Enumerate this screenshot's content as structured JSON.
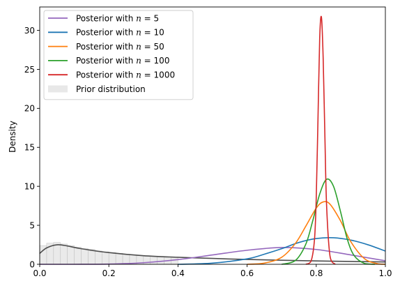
{
  "chart_data": {
    "type": "line",
    "title": "",
    "xlabel": "",
    "ylabel": "Density",
    "xlim": [
      0.0,
      1.0
    ],
    "ylim": [
      0,
      33
    ],
    "x_ticks": [
      0.0,
      0.2,
      0.4,
      0.6,
      0.8,
      1.0
    ],
    "x_tick_labels": [
      "0.0",
      "0.2",
      "0.4",
      "0.6",
      "0.8",
      "1.0"
    ],
    "y_ticks": [
      0,
      5,
      10,
      15,
      20,
      25,
      30
    ],
    "y_tick_labels": [
      "0",
      "5",
      "10",
      "15",
      "20",
      "25",
      "30"
    ],
    "grid": false,
    "legend_position": "upper-left",
    "legend": [
      {
        "label": "Posterior with n = 5",
        "text": "Posterior with ",
        "math": "n",
        "suffix": " = 5",
        "color": "#9467bd",
        "kind": "line"
      },
      {
        "label": "Posterior with n = 10",
        "text": "Posterior with ",
        "math": "n",
        "suffix": " = 10",
        "color": "#1f77b4",
        "kind": "line"
      },
      {
        "label": "Posterior with n = 50",
        "text": "Posterior with ",
        "math": "n",
        "suffix": " = 50",
        "color": "#ff7f0e",
        "kind": "line"
      },
      {
        "label": "Posterior with n = 100",
        "text": "Posterior with ",
        "math": "n",
        "suffix": " = 100",
        "color": "#2ca02c",
        "kind": "line"
      },
      {
        "label": "Posterior with n = 1000",
        "text": "Posterior with ",
        "math": "n",
        "suffix": " = 1000",
        "color": "#d62728",
        "kind": "line"
      },
      {
        "label": "Prior distribution",
        "text": "Prior distribution",
        "math": "",
        "suffix": "",
        "color": "#d9d9d9",
        "kind": "patch"
      }
    ],
    "series": [
      {
        "name": "Posterior with n = 5",
        "color": "#9467bd",
        "x": [
          0.0,
          0.1,
          0.2,
          0.3,
          0.4,
          0.5,
          0.6,
          0.7,
          0.8,
          0.9,
          1.0
        ],
        "y": [
          0.0,
          0.0,
          0.03,
          0.2,
          0.6,
          1.2,
          1.8,
          2.15,
          1.9,
          1.2,
          0.45
        ]
      },
      {
        "name": "Posterior with n = 10",
        "color": "#1f77b4",
        "x": [
          0.4,
          0.5,
          0.6,
          0.65,
          0.7,
          0.75,
          0.8,
          0.85,
          0.9,
          0.95,
          1.0
        ],
        "y": [
          0.0,
          0.15,
          0.7,
          1.3,
          2.0,
          2.8,
          3.3,
          3.4,
          3.1,
          2.5,
          1.7
        ]
      },
      {
        "name": "Posterior with n = 50",
        "color": "#ff7f0e",
        "x": [
          0.6,
          0.65,
          0.7,
          0.74,
          0.77,
          0.8,
          0.82,
          0.84,
          0.87,
          0.9,
          0.94,
          0.98,
          1.0
        ],
        "y": [
          0.0,
          0.15,
          0.9,
          2.7,
          4.9,
          7.2,
          8.0,
          7.7,
          5.6,
          2.9,
          0.7,
          0.05,
          0.0
        ]
      },
      {
        "name": "Posterior with n = 100",
        "color": "#2ca02c",
        "x": [
          0.7,
          0.74,
          0.77,
          0.79,
          0.81,
          0.83,
          0.85,
          0.87,
          0.89,
          0.91,
          0.94,
          0.97
        ],
        "y": [
          0.0,
          0.5,
          2.6,
          5.6,
          9.0,
          10.9,
          10.0,
          6.8,
          3.2,
          1.1,
          0.1,
          0.0
        ]
      },
      {
        "name": "Posterior with n = 1000",
        "color": "#d62728",
        "x": [
          0.77,
          0.785,
          0.795,
          0.8,
          0.805,
          0.81,
          0.815,
          0.82,
          0.825,
          0.83,
          0.84,
          0.855
        ],
        "y": [
          0.0,
          0.4,
          3.2,
          8.5,
          18.5,
          29.0,
          31.7,
          26.5,
          16.5,
          7.5,
          1.0,
          0.0
        ]
      },
      {
        "name": "Prior distribution",
        "color": "#4d4d4d",
        "x": [
          0.0,
          0.02,
          0.05,
          0.08,
          0.12,
          0.2,
          0.3,
          0.4,
          0.5,
          0.6,
          0.7,
          0.8,
          0.9,
          1.0
        ],
        "y": [
          1.4,
          2.1,
          2.5,
          2.35,
          2.0,
          1.5,
          1.1,
          0.9,
          0.75,
          0.62,
          0.52,
          0.43,
          0.36,
          0.3
        ]
      }
    ],
    "prior_histogram": {
      "color": "#e6e6e6",
      "edge_color": "#bdbdbd",
      "bin_width": 0.02,
      "x": [
        0.0,
        0.02,
        0.04,
        0.06,
        0.08,
        0.1,
        0.12,
        0.14,
        0.16,
        0.18,
        0.2,
        0.22,
        0.24,
        0.26,
        0.28,
        0.3,
        0.32,
        0.34,
        0.36,
        0.38
      ],
      "y": [
        2.4,
        2.7,
        2.8,
        2.6,
        2.4,
        2.2,
        2.0,
        1.9,
        1.7,
        1.6,
        1.5,
        1.4,
        1.3,
        1.2,
        1.1,
        1.05,
        1.0,
        0.95,
        0.9,
        0.85
      ]
    }
  }
}
